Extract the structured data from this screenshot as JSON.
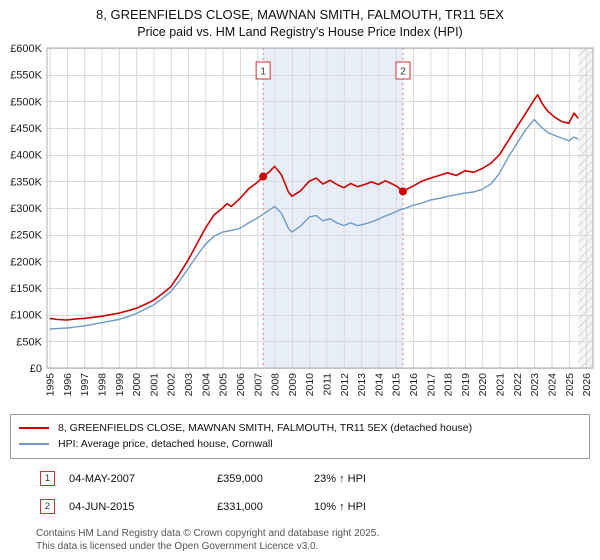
{
  "title": "8, GREENFIELDS CLOSE, MAWNAN SMITH, FALMOUTH, TR11 5EX",
  "subtitle": "Price paid vs. HM Land Registry's House Price Index (HPI)",
  "chart_data": {
    "type": "line",
    "x_range": [
      1994.85,
      2026.4
    ],
    "y_range": [
      0,
      600000
    ],
    "grid": true,
    "legend_position": "bottom",
    "x_ticks": [
      1995,
      1996,
      1997,
      1998,
      1999,
      2000,
      2001,
      2002,
      2003,
      2004,
      2005,
      2006,
      2007,
      2008,
      2009,
      2010,
      2011,
      2012,
      2013,
      2014,
      2015,
      2016,
      2017,
      2018,
      2019,
      2020,
      2021,
      2022,
      2023,
      2024,
      2025,
      2026
    ],
    "y_tick_labels": [
      "£0",
      "£50K",
      "£100K",
      "£150K",
      "£200K",
      "£250K",
      "£300K",
      "£350K",
      "£400K",
      "£450K",
      "£500K",
      "£550K",
      "£600K"
    ],
    "shaded_region": [
      2007.34,
      2015.42
    ],
    "future_region": [
      2025.55,
      2026.4
    ],
    "series": [
      {
        "name": "8, GREENFIELDS CLOSE, MAWNAN SMITH, FALMOUTH, TR11 5EX (detached house)",
        "color": "#cc0000",
        "x": [
          1995.0,
          1995.5,
          1996.0,
          1996.5,
          1997.0,
          1997.5,
          1998.0,
          1998.5,
          1999.0,
          1999.5,
          2000.0,
          2000.5,
          2001.0,
          2001.5,
          2002.0,
          2002.5,
          2003.0,
          2003.5,
          2004.0,
          2004.5,
          2005.0,
          2005.25,
          2005.5,
          2006.0,
          2006.5,
          2007.0,
          2007.34,
          2007.7,
          2008.0,
          2008.4,
          2008.8,
          2009.0,
          2009.5,
          2010.0,
          2010.4,
          2010.8,
          2011.2,
          2011.6,
          2012.0,
          2012.4,
          2012.8,
          2013.2,
          2013.6,
          2014.0,
          2014.4,
          2014.8,
          2015.1,
          2015.42,
          2015.7,
          2016.0,
          2016.5,
          2017.0,
          2017.5,
          2018.0,
          2018.5,
          2019.0,
          2019.5,
          2020.0,
          2020.5,
          2021.0,
          2021.5,
          2022.0,
          2022.5,
          2023.0,
          2023.2,
          2023.5,
          2023.8,
          2024.2,
          2024.6,
          2025.0,
          2025.3,
          2025.55
        ],
        "values": [
          93000,
          91000,
          90000,
          92000,
          93000,
          95000,
          97000,
          100000,
          103000,
          107000,
          112000,
          119000,
          127000,
          139000,
          152000,
          176000,
          202000,
          232000,
          262000,
          287000,
          300000,
          308000,
          303000,
          318000,
          336000,
          348000,
          359000,
          368000,
          378000,
          362000,
          330000,
          322000,
          332000,
          350000,
          356000,
          345000,
          352000,
          344000,
          338000,
          346000,
          340000,
          344000,
          349000,
          344000,
          351000,
          345000,
          340000,
          331000,
          336000,
          341000,
          350000,
          356000,
          361000,
          366000,
          361000,
          370000,
          367000,
          374000,
          384000,
          400000,
          426000,
          452000,
          477000,
          503000,
          512000,
          494000,
          481000,
          470000,
          462000,
          459000,
          478000,
          468000
        ]
      },
      {
        "name": "HPI: Average price, detached house, Cornwall",
        "color": "#6f9ac8",
        "x": [
          1995.0,
          1995.5,
          1996.0,
          1996.5,
          1997.0,
          1997.5,
          1998.0,
          1998.5,
          1999.0,
          1999.5,
          2000.0,
          2000.5,
          2001.0,
          2001.5,
          2002.0,
          2002.5,
          2003.0,
          2003.5,
          2004.0,
          2004.5,
          2005.0,
          2005.5,
          2006.0,
          2006.5,
          2007.0,
          2007.5,
          2008.0,
          2008.4,
          2008.8,
          2009.0,
          2009.5,
          2010.0,
          2010.4,
          2010.8,
          2011.2,
          2011.6,
          2012.0,
          2012.4,
          2012.8,
          2013.2,
          2013.6,
          2014.0,
          2014.4,
          2014.8,
          2015.2,
          2015.6,
          2016.0,
          2016.5,
          2017.0,
          2017.5,
          2018.0,
          2018.5,
          2019.0,
          2019.5,
          2020.0,
          2020.5,
          2021.0,
          2021.5,
          2022.0,
          2022.5,
          2023.0,
          2023.4,
          2023.8,
          2024.2,
          2024.6,
          2025.0,
          2025.3,
          2025.55
        ],
        "values": [
          73000,
          74000,
          75000,
          77000,
          79000,
          82000,
          85000,
          88000,
          91000,
          96000,
          102000,
          110000,
          118000,
          130000,
          143000,
          163000,
          186000,
          210000,
          232000,
          247000,
          255000,
          258000,
          262000,
          272000,
          281000,
          292000,
          303000,
          290000,
          262000,
          255000,
          266000,
          283000,
          286000,
          276000,
          280000,
          272000,
          267000,
          272000,
          267000,
          270000,
          274000,
          279000,
          285000,
          290000,
          296000,
          300000,
          305000,
          309000,
          315000,
          318000,
          322000,
          325000,
          328000,
          330000,
          335000,
          345000,
          365000,
          395000,
          421000,
          446000,
          466000,
          452000,
          441000,
          436000,
          431000,
          426000,
          433000,
          429000
        ]
      }
    ],
    "markers": [
      {
        "label": "1",
        "x": 2007.34,
        "value": 359000
      },
      {
        "label": "2",
        "x": 2015.42,
        "value": 331000
      }
    ]
  },
  "legend": [
    {
      "label": "8, GREENFIELDS CLOSE, MAWNAN SMITH, FALMOUTH, TR11 5EX (detached house)",
      "color": "#cc0000"
    },
    {
      "label": "HPI: Average price, detached house, Cornwall",
      "color": "#6f9ac8"
    }
  ],
  "transactions": [
    {
      "num": "1",
      "date": "04-MAY-2007",
      "price": "£359,000",
      "hpi": "23% ↑ HPI"
    },
    {
      "num": "2",
      "date": "04-JUN-2015",
      "price": "£331,000",
      "hpi": "10% ↑ HPI"
    }
  ],
  "footer": {
    "line1": "Contains HM Land Registry data © Crown copyright and database right 2025.",
    "line2": "This data is licensed under the Open Government Licence v3.0."
  },
  "colors": {
    "price_line": "#cc0000",
    "hpi_line": "#6f9ac8",
    "sale_vline": "#e08080",
    "shading": "#e8eef8",
    "grid": "#d9d9d9"
  }
}
